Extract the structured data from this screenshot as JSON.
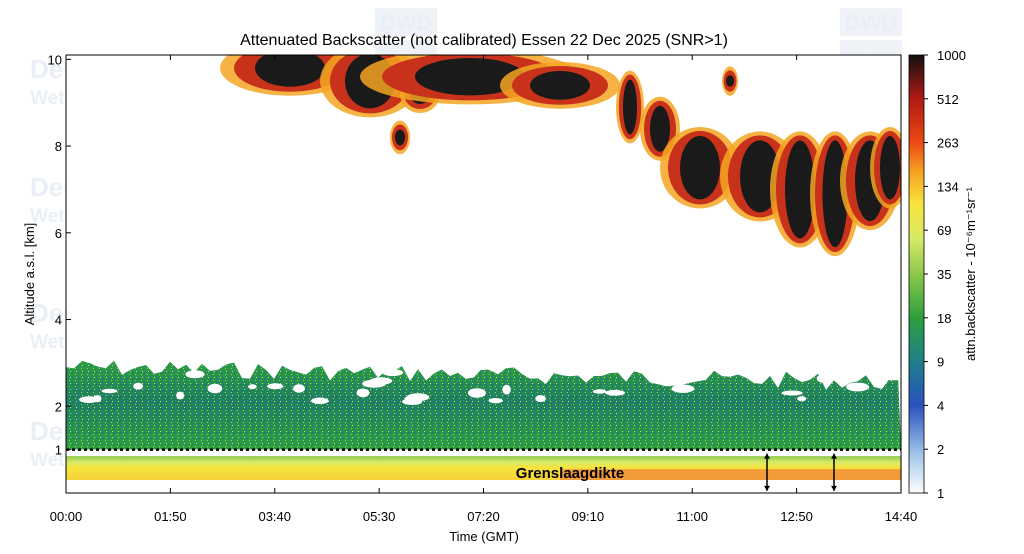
{
  "chart_data": {
    "type": "heatmap",
    "title": "Attenuated Backscatter (not calibrated) Essen 22 Dec 2025 (SNR>1)",
    "xlabel": "Time (GMT)",
    "ylabel": "Altitude a.s.l. [km]",
    "x_ticks": [
      "00:00",
      "01:50",
      "03:40",
      "05:30",
      "07:20",
      "09:10",
      "11:00",
      "12:50",
      "14:40"
    ],
    "y_ticks": [
      2,
      4,
      6,
      8,
      10
    ],
    "y_extra_tick": 1,
    "xlim": [
      "00:00",
      "14:40"
    ],
    "ylim": [
      0,
      10.1
    ],
    "colorbar": {
      "label": "attn.backscatter - 10⁻⁶m⁻¹sr⁻¹",
      "ticks": [
        1000,
        512,
        263,
        134,
        69,
        35,
        18,
        9,
        4,
        2,
        1
      ],
      "scale": "log",
      "colors": [
        "#101010",
        "#b01a14",
        "#ec4a12",
        "#f5a623",
        "#f7e43c",
        "#d7e968",
        "#8cc84b",
        "#2e9f3c",
        "#1f7f8c",
        "#2a52be",
        "#9fc4ea",
        "#ffffff"
      ]
    },
    "boundary_layer_height_km": 1.0,
    "annotation": "Grenslaagdikte",
    "layers": [
      {
        "name": "",
        "bottom_km": 0.3,
        "top_km": 1.0,
        "level": 69
      },
      {
        "name": "",
        "bottom_km": 1.0,
        "top_km": 3.1,
        "level": 10
      },
      {
        "name": "",
        "bottom_km": 5.5,
        "top_km": 10.1,
        "level": 500
      }
    ],
    "grid": false,
    "legend_position": "right colorbar"
  },
  "watermark": {
    "line1": "Deutscher Wetterdienst",
    "line2": "Wetter und Klima aus einer Hand",
    "logo": "DWD"
  }
}
